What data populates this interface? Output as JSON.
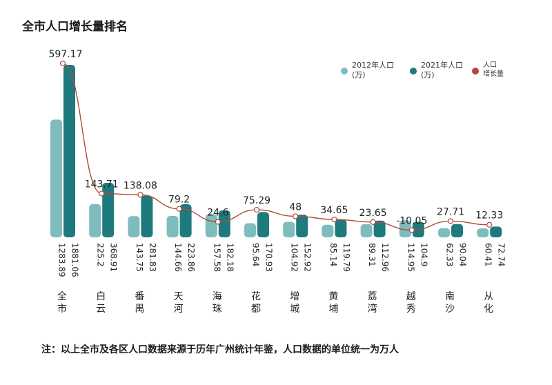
{
  "title": "全市人口增长量排名",
  "footnote": "注：以上全市及各区人口数据来源于历年广州统计年鉴，人口数据的单位统一为万人",
  "legend": {
    "s2012_l1": "2012年人口",
    "s2012_l2": "(万)",
    "s2021_l1": "2021年人口",
    "s2021_l2": "(万)",
    "growth_l1": "人口",
    "growth_l2": "增长量"
  },
  "colors": {
    "s2012": "#7fbcbe",
    "s2021": "#1f7a7e",
    "growth": "#b04a3c"
  },
  "chart_data": {
    "type": "bar",
    "title": "全市人口增长量排名",
    "categories": [
      "全市",
      "白云",
      "番禺",
      "天河",
      "海珠",
      "花都",
      "增城",
      "黄埔",
      "荔湾",
      "越秀",
      "南沙",
      "从化"
    ],
    "series": [
      {
        "name": "2012年人口(万)",
        "type": "bar",
        "values": [
          1283.89,
          225.2,
          143.75,
          144.66,
          157.58,
          95.64,
          104.92,
          85.14,
          89.31,
          114.95,
          62.33,
          60.41
        ],
        "labels": [
          "1283.89",
          "225.2",
          "143.75",
          "144.66",
          "157.58",
          "95.64",
          "104.92",
          "85.14",
          "89.31",
          "114.95",
          "62.33",
          "60.41"
        ]
      },
      {
        "name": "2021年人口(万)",
        "type": "bar",
        "values": [
          1881.06,
          368.91,
          281.83,
          223.86,
          182.18,
          170.93,
          152.92,
          119.79,
          112.96,
          104.9,
          90.04,
          72.74
        ],
        "labels": [
          "1881.06",
          "368.91",
          "281.83",
          "223.86",
          "182.18",
          "170.93",
          "152.92",
          "119.79",
          "112.96",
          "104.9",
          "90.04",
          "72.74"
        ]
      },
      {
        "name": "人口增长量",
        "type": "line",
        "values": [
          597.17,
          143.71,
          138.08,
          79.2,
          24.6,
          75.29,
          48,
          34.65,
          23.65,
          -10.05,
          27.71,
          12.33
        ],
        "labels": [
          "597.17",
          "143.71",
          "138.08",
          "79.2",
          "24.6",
          "75.29",
          "48",
          "34.65",
          "23.65",
          "-10.05",
          "27.71",
          "12.33"
        ]
      }
    ],
    "legend_position": "top-right",
    "grid": false
  }
}
